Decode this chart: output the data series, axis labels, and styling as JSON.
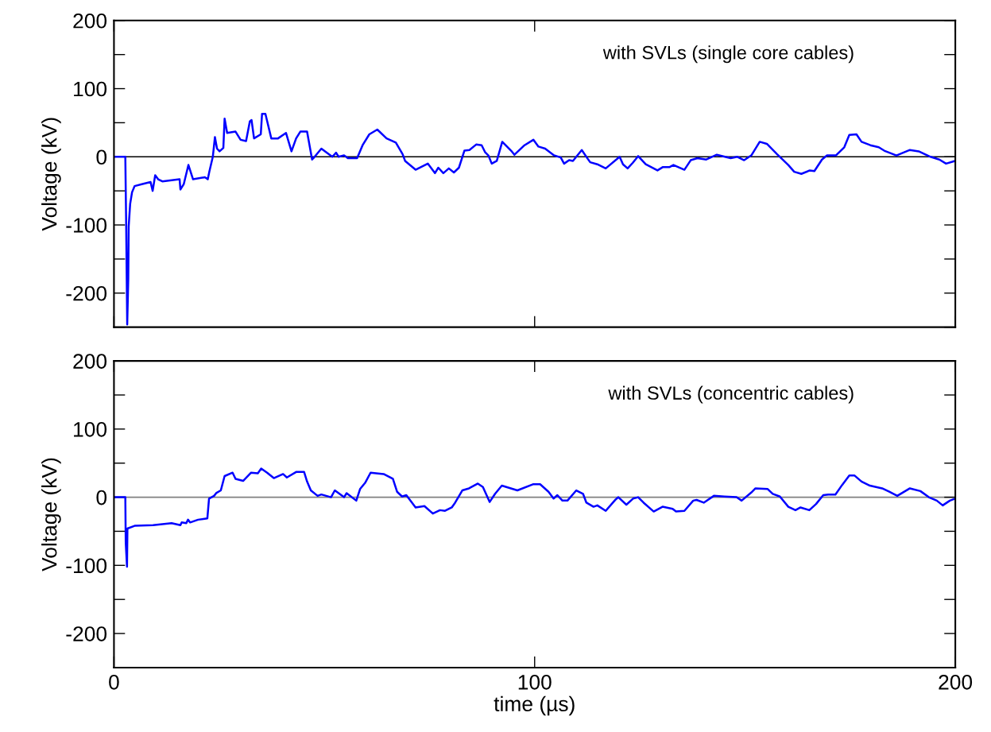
{
  "chart_data": [
    {
      "type": "line",
      "ylabel": "Voltage (kV)",
      "annotations": [
        "with SVLs (single core cables)"
      ],
      "tick_labels": "y",
      "grid": false,
      "legend": false,
      "xlim": [
        0,
        200
      ],
      "xticks": [
        0,
        100,
        200
      ],
      "ylim": [
        -250,
        200
      ],
      "yticks": [
        {
          "value": -250,
          "label": null
        },
        -200,
        {
          "value": -150,
          "label": null
        },
        -100,
        {
          "value": -50,
          "label": null
        },
        0,
        {
          "value": 50,
          "label": null
        },
        100,
        {
          "value": 150,
          "label": null
        },
        200
      ],
      "ref_lines": [
        {
          "axis": "y",
          "value": 0,
          "color": "#000000"
        }
      ],
      "series": [
        {
          "color": "#0000ff",
          "x": [
            0,
            2.7,
            2.9,
            3.15,
            3.4,
            3.5,
            3.85,
            4.3,
            4.9,
            6.8,
            8.7,
            9.2,
            9.8,
            10.5,
            11.5,
            15.6,
            15.8,
            16.6,
            17.7,
            18.8,
            21.6,
            22.3,
            22.7,
            23.5,
            24.0,
            24.5,
            25.1,
            26.0,
            26.3,
            26.9,
            28.9,
            30.1,
            31.4,
            32.3,
            32.7,
            33.3,
            34.9,
            35.2,
            36.0,
            37.4,
            39,
            40.9,
            42.2,
            43.3,
            44.3,
            45.9,
            47.1,
            47.7,
            49.3,
            51.9,
            52.8,
            53.4,
            54.7,
            55.6,
            57.8,
            59.1,
            60.7,
            62.6,
            64.8,
            67.0,
            68.6,
            69.2,
            71.7,
            74.6,
            76.3,
            77.1,
            78.3,
            79.6,
            80.8,
            82.0,
            83.3,
            84.5,
            86.1,
            87.4,
            88.2,
            89.0,
            89.8,
            91.0,
            92.3,
            94.4,
            95.2,
            97.6,
            99.7,
            100.9,
            102.5,
            104.6,
            106.2,
            107.0,
            108.2,
            109.1,
            111.2,
            112.4,
            113.2,
            114.9,
            116.9,
            120.2,
            121.0,
            122.1,
            123.3,
            124.6,
            126.4,
            129.2,
            130.5,
            132.1,
            133.0,
            135.6,
            137.1,
            138.7,
            140.8,
            143.3,
            146.6,
            148.2,
            149.8,
            151.5,
            153.5,
            155.2,
            157.6,
            160.3,
            161.7,
            163.4,
            165.4,
            166.5,
            168.3,
            169.5,
            171.6,
            173.6,
            174.8,
            176.5,
            177.7,
            179.8,
            181.8,
            183.1,
            186.0,
            189.2,
            191.3,
            194.1,
            196.2,
            197.8,
            200
          ],
          "values": [
            0,
            0,
            -98,
            -246,
            -179,
            -102,
            -69,
            -52,
            -43,
            -40,
            -37,
            -50,
            -27,
            -33,
            -36,
            -33,
            -48,
            -40,
            -12,
            -33,
            -30,
            -33,
            -21,
            0,
            29,
            12,
            8,
            13,
            56,
            35,
            37,
            25,
            23,
            52,
            54,
            27,
            33,
            63,
            63,
            27,
            27,
            35,
            8,
            27,
            37,
            37,
            -4,
            0,
            12,
            0,
            6,
            0,
            2,
            -2,
            -2,
            17,
            33,
            40,
            27,
            21,
            4,
            -6,
            -19,
            -10,
            -24,
            -16,
            -24,
            -17,
            -23,
            -16,
            9,
            10,
            18,
            17,
            7,
            2,
            -10,
            -6,
            22,
            9,
            3,
            17,
            25,
            15,
            12,
            2,
            -1,
            -10,
            -5,
            -6,
            10,
            -1,
            -8,
            -11,
            -17,
            0,
            -11,
            -17,
            -9,
            1,
            -11,
            -20,
            -15,
            -15,
            -12,
            -19,
            -5,
            -2,
            -4,
            3,
            -2,
            0,
            -5,
            2,
            22,
            19,
            4,
            -12,
            -22,
            -25,
            -20,
            -21,
            -4,
            2,
            2,
            14,
            32,
            33,
            22,
            17,
            14,
            9,
            2,
            10,
            8,
            0,
            -4,
            -10,
            -6
          ]
        }
      ]
    },
    {
      "type": "line",
      "ylabel": "Voltage (kV)",
      "xlabel": "time (µs)",
      "annotations": [
        "with SVLs (concentric cables)"
      ],
      "grid": false,
      "legend": false,
      "xlim": [
        0,
        200
      ],
      "xticks": [
        0,
        100,
        200
      ],
      "ylim": [
        -250,
        200
      ],
      "yticks": [
        {
          "value": -250,
          "label": null
        },
        -200,
        {
          "value": -150,
          "label": null
        },
        -100,
        {
          "value": -50,
          "label": null
        },
        0,
        {
          "value": 50,
          "label": null
        },
        100,
        {
          "value": 150,
          "label": null
        },
        200
      ],
      "ref_lines": [
        {
          "axis": "y",
          "value": 0,
          "color": "#808080"
        }
      ],
      "series": [
        {
          "color": "#0000ff",
          "x": [
            0,
            2.7,
            2.8,
            3.1,
            3.2,
            4.9,
            9.3,
            13.7,
            15.8,
            16.1,
            17.2,
            17.6,
            18.1,
            20.0,
            22.2,
            22.6,
            23.8,
            24.3,
            25.4,
            26.3,
            28.2,
            28.9,
            30.7,
            32.6,
            34.2,
            35.0,
            36.4,
            38.0,
            40.2,
            41.1,
            43.3,
            45.2,
            45.9,
            46.8,
            48.4,
            49.3,
            51.6,
            52.5,
            54.7,
            55.3,
            57.6,
            58.5,
            59.7,
            61.0,
            64.1,
            66.3,
            67.3,
            68.5,
            69.5,
            71.7,
            73.8,
            75.8,
            77.5,
            78.7,
            80.3,
            81.1,
            82.8,
            84.4,
            86.5,
            87.7,
            89.3,
            90.6,
            92.2,
            95.9,
            99.6,
            101.3,
            103.3,
            104.5,
            105.4,
            106.6,
            107.8,
            109.9,
            111.5,
            112.3,
            114.0,
            114.9,
            116.9,
            119.3,
            119.9,
            121.8,
            123.4,
            124.6,
            125.9,
            128.3,
            130.4,
            132.8,
            133.6,
            135.6,
            137.7,
            138.5,
            140.2,
            142.6,
            145.1,
            148.0,
            149.2,
            151.7,
            152.5,
            155.4,
            156.6,
            158.3,
            160.3,
            162.0,
            163.2,
            165.3,
            166.9,
            168.6,
            169.8,
            171.5,
            173.1,
            174.8,
            176.0,
            177.7,
            179.7,
            182.6,
            184.3,
            186.2,
            189.2,
            191.7,
            193.7,
            195.6,
            197.0,
            198.7,
            200
          ],
          "values": [
            0,
            0,
            -67,
            -102,
            -46,
            -42,
            -41,
            -38,
            -41,
            -37,
            -38,
            -33,
            -37,
            -33,
            -31,
            -2,
            2,
            6,
            10,
            31,
            36,
            27,
            24,
            36,
            35,
            42,
            36,
            28,
            34,
            29,
            37,
            37,
            23,
            10,
            2,
            4,
            0,
            10,
            0,
            6,
            -5,
            12,
            21,
            36,
            34,
            27,
            8,
            1,
            3,
            -15,
            -13,
            -24,
            -19,
            -20,
            -15,
            -8,
            10,
            13,
            20,
            15,
            -7,
            5,
            17,
            10,
            19,
            19,
            8,
            -2,
            3,
            -5,
            -5,
            10,
            5,
            -8,
            -14,
            -12,
            -20,
            -3,
            0,
            -11,
            -2,
            0,
            -8,
            -21,
            -14,
            -17,
            -21,
            -20,
            -5,
            -4,
            -8,
            2,
            1,
            0,
            -5,
            8,
            13,
            12,
            5,
            1,
            -14,
            -19,
            -15,
            -19,
            -10,
            3,
            4,
            4,
            18,
            32,
            32,
            23,
            17,
            13,
            8,
            2,
            13,
            9,
            0,
            -5,
            -12,
            -5,
            -2
          ]
        }
      ]
    }
  ]
}
